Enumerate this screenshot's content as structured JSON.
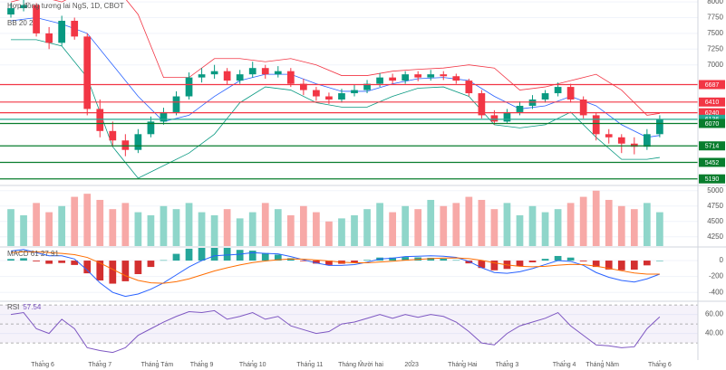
{
  "chart_data": [
    {
      "type": "candlestick",
      "title": "Hợp đồng tương lai NgS, 1D, CBOT",
      "legend": "BB 20 2",
      "up_color": "#089981",
      "down_color": "#f23645",
      "open": [
        7800,
        7900,
        7950,
        7500,
        7350,
        7700,
        7450,
        6300,
        5950,
        5800,
        5650,
        5900,
        6100,
        6250,
        6500,
        6800,
        6850,
        6900,
        6750,
        6850,
        6950,
        6850,
        6900,
        6700,
        6600,
        6500,
        6450,
        6550,
        6600,
        6700,
        6800,
        6750,
        6850,
        6800,
        6850,
        6820,
        6750,
        6550,
        6200,
        6100,
        6250,
        6350,
        6450,
        6550,
        6650,
        6450,
        6200,
        5900,
        5850,
        5750,
        5700,
        5900
      ],
      "high": [
        7980,
        8050,
        7980,
        7600,
        7780,
        7750,
        7500,
        6450,
        6100,
        5900,
        5980,
        6180,
        6320,
        6580,
        6880,
        6950,
        7000,
        6950,
        6920,
        7050,
        7000,
        6980,
        6950,
        6780,
        6650,
        6560,
        6620,
        6680,
        6760,
        6870,
        6860,
        6900,
        6900,
        6920,
        6900,
        6860,
        6780,
        6600,
        6280,
        6300,
        6420,
        6520,
        6600,
        6720,
        6700,
        6500,
        6250,
        5980,
        5900,
        5850,
        5980,
        6200
      ],
      "low": [
        7750,
        7850,
        7450,
        7250,
        7300,
        7400,
        6200,
        5850,
        5700,
        5550,
        5600,
        5850,
        6050,
        6200,
        6450,
        6720,
        6780,
        6680,
        6700,
        6800,
        6780,
        6800,
        6650,
        6520,
        6430,
        6380,
        6400,
        6500,
        6550,
        6650,
        6700,
        6700,
        6740,
        6750,
        6760,
        6700,
        6500,
        6150,
        6050,
        6080,
        6200,
        6300,
        6400,
        6500,
        6400,
        6150,
        5800,
        5750,
        5600,
        5580,
        5650,
        5850
      ],
      "close": [
        7900,
        7950,
        7500,
        7350,
        7700,
        7450,
        6300,
        5950,
        5800,
        5650,
        5900,
        6100,
        6250,
        6500,
        6800,
        6850,
        6900,
        6750,
        6850,
        6950,
        6850,
        6900,
        6700,
        6600,
        6500,
        6450,
        6550,
        6600,
        6700,
        6800,
        6750,
        6850,
        6800,
        6850,
        6820,
        6750,
        6550,
        6200,
        6100,
        6250,
        6350,
        6450,
        6550,
        6650,
        6450,
        6200,
        5900,
        5850,
        5750,
        5700,
        5900,
        6136
      ],
      "bands": {
        "x": [
          0,
          2,
          4,
          6,
          8,
          10,
          12,
          14,
          16,
          18,
          20,
          22,
          24,
          26,
          28,
          30,
          32,
          34,
          36,
          38,
          40,
          42,
          44,
          46,
          48,
          50,
          51
        ],
        "upper": [
          8000,
          8100,
          8000,
          8200,
          8300,
          7800,
          6800,
          6800,
          7100,
          7100,
          7050,
          7100,
          7000,
          6830,
          6830,
          6900,
          6930,
          6950,
          7000,
          6950,
          6600,
          6650,
          6750,
          6850,
          6600,
          6200,
          6230
        ],
        "middle": [
          7700,
          7750,
          7650,
          7500,
          7000,
          6500,
          6100,
          6200,
          6500,
          6750,
          6850,
          6850,
          6700,
          6580,
          6580,
          6700,
          6780,
          6800,
          6750,
          6500,
          6300,
          6350,
          6500,
          6350,
          6050,
          5850,
          5880
        ],
        "lower": [
          7400,
          7400,
          7300,
          6800,
          5700,
          5200,
          5400,
          5600,
          5900,
          6400,
          6650,
          6600,
          6400,
          6330,
          6330,
          6500,
          6630,
          6650,
          6500,
          6050,
          6000,
          6050,
          6250,
          5850,
          5500,
          5500,
          5530
        ],
        "upper_color": "#f23645",
        "middle_color": "#2962ff",
        "lower_color": "#089981"
      },
      "levels": [
        {
          "value": 6687,
          "color": "#f23645"
        },
        {
          "value": 6410,
          "color": "#f23645"
        },
        {
          "value": 6240,
          "color": "#f23645"
        },
        {
          "value": 6136,
          "color": "#22ab94"
        },
        {
          "value": 6070,
          "color": "#087d2d"
        },
        {
          "value": 5714,
          "color": "#087d2d"
        },
        {
          "value": 5452,
          "color": "#087d2d"
        },
        {
          "value": 5190,
          "color": "#087d2d"
        }
      ],
      "ylim": [
        5100,
        8030
      ],
      "yticks": [
        7000,
        7250,
        7500,
        7750,
        8000
      ]
    },
    {
      "type": "bar",
      "up_color": "#8fd6ca",
      "down_color": "#f7a9a7",
      "values": [
        4700,
        4600,
        4800,
        4650,
        4750,
        4900,
        4950,
        4850,
        4700,
        4800,
        4650,
        4600,
        4750,
        4700,
        4800,
        4650,
        4600,
        4700,
        4550,
        4650,
        4800,
        4700,
        4600,
        4750,
        4650,
        4500,
        4550,
        4600,
        4700,
        4800,
        4650,
        4750,
        4700,
        4850,
        4750,
        4800,
        4900,
        4850,
        4700,
        4800,
        4600,
        4750,
        4650,
        4700,
        4800,
        4900,
        5000,
        4850,
        4750,
        4700,
        4800,
        4650
      ],
      "ylim": [
        4100,
        5070
      ],
      "yticks": [
        4250,
        4500,
        4750,
        5000
      ]
    },
    {
      "type": "macd",
      "legend": "MACD 61 27 91",
      "up_color": "#26a69a",
      "down_color": "#d32f2f",
      "macd_color": "#2962ff",
      "signal_color": "#ff6d00",
      "macd": [
        120,
        140,
        100,
        60,
        60,
        20,
        -120,
        -280,
        -400,
        -450,
        -420,
        -360,
        -280,
        -180,
        -80,
        0,
        60,
        70,
        80,
        100,
        90,
        85,
        50,
        10,
        -30,
        -60,
        -60,
        -50,
        -20,
        20,
        30,
        50,
        55,
        60,
        55,
        40,
        -10,
        -90,
        -150,
        -160,
        -140,
        -100,
        -50,
        0,
        -10,
        -60,
        -150,
        -210,
        -250,
        -270,
        -230,
        -170
      ],
      "signal": [
        100,
        110,
        110,
        100,
        90,
        75,
        40,
        -30,
        -110,
        -190,
        -250,
        -280,
        -285,
        -265,
        -230,
        -180,
        -130,
        -90,
        -55,
        -25,
        -5,
        10,
        20,
        18,
        8,
        -5,
        -20,
        -28,
        -28,
        -18,
        -8,
        5,
        15,
        25,
        32,
        34,
        25,
        3,
        -28,
        -55,
        -72,
        -78,
        -72,
        -58,
        -48,
        -50,
        -70,
        -98,
        -128,
        -156,
        -170,
        -170
      ],
      "histogram": [
        20,
        30,
        -10,
        -40,
        -30,
        -55,
        -160,
        -250,
        -290,
        -260,
        -170,
        -80,
        5,
        85,
        150,
        180,
        190,
        160,
        135,
        125,
        95,
        75,
        30,
        -8,
        -38,
        -55,
        -40,
        -22,
        8,
        38,
        38,
        45,
        40,
        35,
        23,
        6,
        -35,
        -93,
        -122,
        -105,
        -68,
        -22,
        22,
        58,
        38,
        -10,
        -80,
        -112,
        -122,
        -114,
        -60,
        0
      ],
      "ylim": [
        -500,
        160
      ],
      "yticks": [
        0,
        -200,
        -400
      ]
    },
    {
      "type": "line",
      "legend": "RSI",
      "color": "#7e57c2",
      "band": [
        30,
        70
      ],
      "midline": 50,
      "values": [
        60,
        62,
        45,
        40,
        55,
        45,
        25,
        22,
        20,
        25,
        38,
        45,
        52,
        58,
        63,
        62,
        64,
        55,
        58,
        62,
        55,
        58,
        48,
        44,
        40,
        42,
        50,
        52,
        56,
        60,
        56,
        60,
        57,
        60,
        58,
        52,
        42,
        30,
        28,
        40,
        48,
        52,
        56,
        62,
        48,
        38,
        28,
        27,
        25,
        26,
        45,
        57.54
      ],
      "ylim": [
        12,
        73
      ],
      "yticks": [
        {
          "value": 60,
          "label": "60.00"
        },
        {
          "value": 40,
          "label": "40.00"
        }
      ],
      "xlim": [
        -0.5,
        54
      ],
      "xticks": [
        {
          "value": 2.5,
          "label": "Tháng 6"
        },
        {
          "value": 7,
          "label": "Tháng 7"
        },
        {
          "value": 11.5,
          "label": "Tháng Tám"
        },
        {
          "value": 15,
          "label": "Tháng 9"
        },
        {
          "value": 19,
          "label": "Tháng 10"
        },
        {
          "value": 23.5,
          "label": "Tháng 11"
        },
        {
          "value": 27.5,
          "label": "Tháng Mười hai"
        },
        {
          "value": 31.5,
          "label": "2023"
        },
        {
          "value": 35.5,
          "label": "Tháng Hai"
        },
        {
          "value": 39,
          "label": "Tháng 3"
        },
        {
          "value": 43.5,
          "label": "Tháng 4"
        },
        {
          "value": 46.5,
          "label": "Tháng Năm"
        },
        {
          "value": 51,
          "label": "Tháng 6"
        }
      ]
    }
  ]
}
